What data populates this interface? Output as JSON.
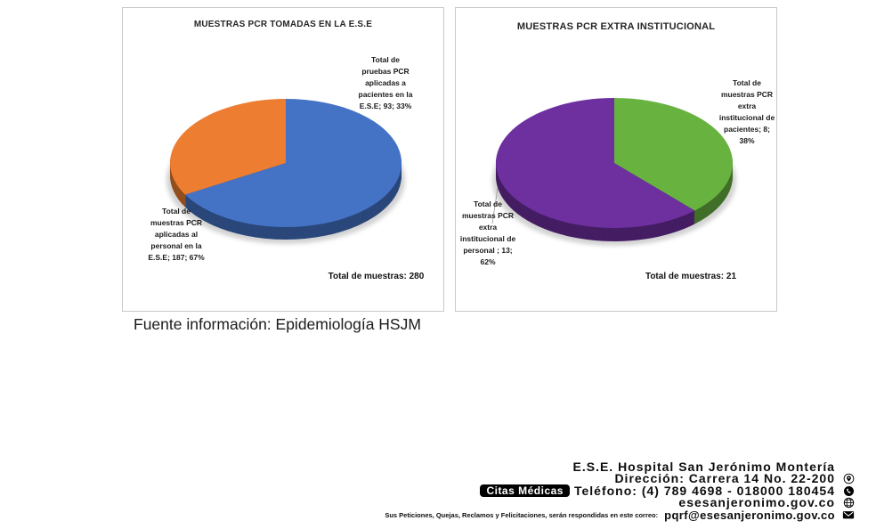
{
  "chart_data": [
    {
      "type": "pie",
      "title": "MUESTRAS PCR TOMADAS EN LA E.S.E",
      "slices": [
        {
          "name": "Total de muestras PCR aplicadas al personal en la E.S.E",
          "value": 187,
          "percent": "67%",
          "color": "#4472C4"
        },
        {
          "name": "Total de pruebas PCR aplicadas a pacientes en la E.S.E",
          "value": 93,
          "percent": "33%",
          "color": "#ED7D31"
        }
      ],
      "total": 280,
      "total_note": "Total de muestras: 280",
      "legend_position": "outside-callout-labels",
      "labels": {
        "right": "Total  de\npruebas PCR\naplicadas a\npacientes en la\nE.S.E; 93; 33%",
        "left": "Total de\nmuestras PCR\naplicadas al\npersonal en la\nE.S.E; 187; 67%"
      }
    },
    {
      "type": "pie",
      "title": "MUESTRAS PCR EXTRA INSTITUCIONAL",
      "slices": [
        {
          "name": "Total de muestras PCR extra institucional de pacientes",
          "value": 8,
          "percent": "38%",
          "color": "#68B340"
        },
        {
          "name": "Total de muestras PCR extra institucional de personal",
          "value": 13,
          "percent": "62%",
          "color": "#6E2F9F"
        }
      ],
      "total": 21,
      "total_note": "Total de muestras: 21",
      "legend_position": "outside-callout-labels",
      "labels": {
        "right": "Total  de\nmuestras PCR\nextra\ninstitucional de\npacientes; 8;\n38%",
        "left": "Total  de\nmuestras PCR\nextra\ninstitucional de\npersonal ; 13;\n62%"
      }
    }
  ],
  "source_note": "Fuente información: Epidemiología HSJM",
  "footer": {
    "org_name": "E.S.E. Hospital San Jerónimo Montería",
    "address": "Dirección: Carrera 14 No. 22-200",
    "appointments_badge": "Citas Médicas",
    "phone": "Teléfono: (4) 789 4698 - 018000 180454",
    "website": "esesanjeronimo.gov.co",
    "pqr_note": "Sus Peticiones, Quejas, Reclamos y Felicitaciones, serán respondidas en este correo:",
    "email": "pqrf@esesanjeronimo.gov.co",
    "icons": {
      "address": "location-pin",
      "phone": "whatsapp",
      "website": "globe",
      "email": "envelope"
    }
  }
}
